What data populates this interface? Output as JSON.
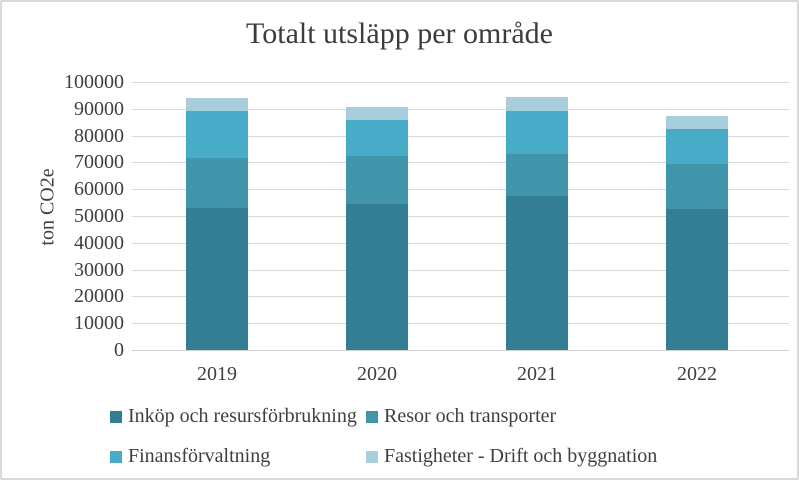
{
  "chart_data": {
    "type": "bar",
    "stacked": true,
    "title": "Totalt utsläpp per område",
    "xlabel": "",
    "ylabel": "ton CO2e",
    "categories": [
      "2019",
      "2020",
      "2021",
      "2022"
    ],
    "series": [
      {
        "name": "Inköp och resursförbrukning",
        "color": "#347e93",
        "values": [
          53000,
          54500,
          57500,
          52500
        ]
      },
      {
        "name": "Resor och transporter",
        "color": "#4095ab",
        "values": [
          18500,
          18000,
          15500,
          17000
        ]
      },
      {
        "name": "Finansförvaltning",
        "color": "#48abc7",
        "values": [
          17500,
          13500,
          16000,
          13000
        ]
      },
      {
        "name": "Fastigheter - Drift och byggnation",
        "color": "#a8cedd",
        "values": [
          5000,
          4500,
          5500,
          5000
        ]
      }
    ],
    "totals": [
      94000,
      90500,
      94500,
      87500
    ],
    "ylim": [
      0,
      100000
    ],
    "ytick_step": 10000,
    "ytick_labels": [
      "0",
      "10000",
      "20000",
      "30000",
      "40000",
      "50000",
      "60000",
      "70000",
      "80000",
      "90000",
      "100000"
    ],
    "grid": true,
    "legend_position": "bottom",
    "colors": {
      "text": "#3f3f3f",
      "gridline": "#d9d9d9",
      "background": "#ffffff",
      "border": "#d7d9da"
    }
  }
}
